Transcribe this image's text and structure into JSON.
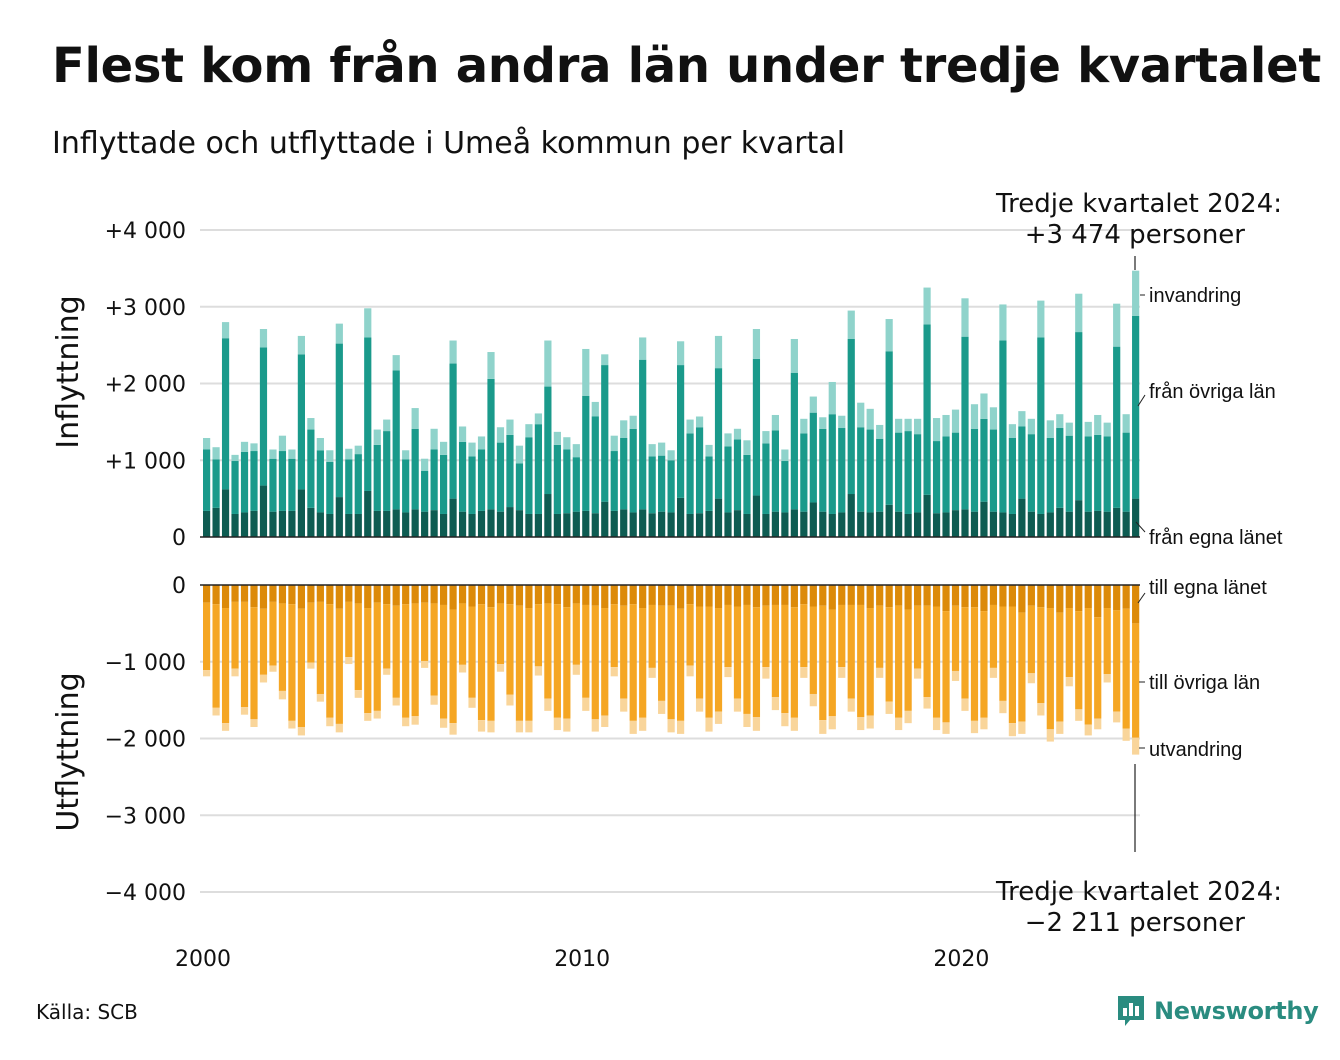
{
  "title": "Flest kom från andra län under tredje kvartalet",
  "subtitle": "Inflyttade och utflyttade i Umeå kommun per kvartal",
  "source": "Källa: SCB",
  "logo_text": "Newsworthy",
  "colors": {
    "in_own": "#0e5c52",
    "in_other": "#1a9a8b",
    "in_immig": "#8fd3cb",
    "out_own": "#dc8a09",
    "out_other": "#f5a623",
    "out_emig": "#f9d59a",
    "grid": "#dddddd",
    "axis": "#222222"
  },
  "annotations": {
    "top_line1": "Tredje kvartalet 2024:",
    "top_line2": "+3 474 personer",
    "bottom_line1": "Tredje kvartalet 2024:",
    "bottom_line2": "−2 211 personer"
  },
  "chart_data": {
    "type": "bar",
    "stacked": true,
    "x_start": "2000 Q1",
    "x_end": "2024 Q3",
    "x_ticks": [
      "2000",
      "2010",
      "2020"
    ],
    "panels": [
      {
        "name": "Inflyttning",
        "ylabel": "Inflyttning",
        "ylim": [
          0,
          4000
        ],
        "y_ticks": [
          "0",
          "+1 000",
          "+2 000",
          "+3 000",
          "+4 000"
        ],
        "series_labels": [
          "från egna länet",
          "från övriga län",
          "invandring"
        ],
        "series": [
          {
            "name": "från egna länet",
            "values": [
              340,
              380,
              620,
              300,
              320,
              340,
              670,
              330,
              340,
              340,
              620,
              380,
              320,
              300,
              520,
              300,
              300,
              600,
              340,
              340,
              360,
              320,
              360,
              330,
              350,
              300,
              500,
              330,
              300,
              340,
              360,
              330,
              390,
              350,
              300,
              300,
              560,
              300,
              310,
              330,
              340,
              310,
              460,
              340,
              360,
              320,
              360,
              310,
              330,
              320,
              510,
              300,
              310,
              340,
              500,
              320,
              350,
              300,
              540,
              300,
              330,
              320,
              360,
              330,
              450,
              330,
              300,
              320,
              560,
              330,
              320,
              330,
              420,
              330,
              300,
              320,
              550,
              310,
              320,
              350,
              360,
              330,
              460,
              330,
              320,
              300,
              500,
              330,
              300,
              320,
              380,
              330,
              480,
              330,
              340,
              330,
              380,
              330,
              500
            ]
          },
          {
            "name": "från övriga län",
            "values": [
              800,
              630,
              1970,
              690,
              790,
              780,
              1800,
              690,
              780,
              680,
              1760,
              1020,
              810,
              680,
              2000,
              710,
              780,
              2000,
              860,
              1040,
              1810,
              690,
              1050,
              530,
              790,
              770,
              1760,
              910,
              750,
              800,
              1700,
              900,
              940,
              610,
              1000,
              1170,
              1400,
              900,
              830,
              710,
              1500,
              1260,
              1780,
              780,
              930,
              1090,
              1950,
              740,
              730,
              680,
              1730,
              1050,
              1120,
              710,
              1700,
              860,
              920,
              770,
              1780,
              920,
              1060,
              670,
              1780,
              1020,
              1170,
              1080,
              1300,
              1100,
              2020,
              1100,
              1080,
              950,
              2000,
              1030,
              1080,
              1020,
              2220,
              940,
              990,
              1010,
              2250,
              1080,
              1080,
              1070,
              2240,
              990,
              940,
              1010,
              2300,
              970,
              1040,
              990,
              2190,
              980,
              990,
              980,
              2100,
              1030,
              2380
            ]
          },
          {
            "name": "invandring",
            "values": [
              150,
              160,
              210,
              80,
              130,
              100,
              240,
              120,
              200,
              120,
              240,
              150,
              160,
              150,
              260,
              140,
              110,
              380,
              200,
              150,
              200,
              120,
              270,
              160,
              270,
              170,
              300,
              200,
              180,
              170,
              350,
              200,
              200,
              230,
              170,
              140,
              600,
              170,
              160,
              170,
              610,
              190,
              140,
              200,
              230,
              170,
              290,
              160,
              170,
              130,
              310,
              180,
              140,
              150,
              420,
              170,
              140,
              190,
              390,
              160,
              200,
              150,
              440,
              190,
              210,
              150,
              420,
              160,
              370,
              320,
              270,
              180,
              420,
              180,
              160,
              200,
              480,
              300,
              280,
              300,
              500,
              320,
              330,
              290,
              470,
              180,
              200,
              200,
              480,
              230,
              180,
              170,
              500,
              190,
              260,
              180,
              560,
              240,
              590
            ]
          }
        ]
      },
      {
        "name": "Utflyttning",
        "ylabel": "Utflyttning",
        "ylim": [
          -4000,
          0
        ],
        "y_ticks": [
          "0",
          "−1 000",
          "−2 000",
          "−3 000",
          "−4 000"
        ],
        "series_labels": [
          "till egna länet",
          "till övriga län",
          "utvandring"
        ],
        "series": [
          {
            "name": "till egna länet",
            "values": [
              -230,
              -250,
              -300,
              -220,
              -220,
              -290,
              -310,
              -220,
              -240,
              -250,
              -310,
              -230,
              -220,
              -250,
              -310,
              -220,
              -240,
              -300,
              -230,
              -250,
              -270,
              -250,
              -240,
              -230,
              -240,
              -260,
              -320,
              -240,
              -280,
              -250,
              -290,
              -240,
              -250,
              -270,
              -300,
              -250,
              -240,
              -250,
              -290,
              -240,
              -260,
              -270,
              -300,
              -250,
              -270,
              -250,
              -300,
              -260,
              -270,
              -270,
              -310,
              -250,
              -280,
              -280,
              -300,
              -260,
              -280,
              -260,
              -290,
              -270,
              -260,
              -260,
              -290,
              -250,
              -280,
              -270,
              -320,
              -260,
              -260,
              -260,
              -300,
              -270,
              -290,
              -270,
              -320,
              -270,
              -270,
              -280,
              -340,
              -270,
              -290,
              -290,
              -340,
              -260,
              -280,
              -280,
              -360,
              -270,
              -290,
              -300,
              -360,
              -300,
              -340,
              -300,
              -420,
              -300,
              -330,
              -310,
              -500
            ]
          },
          {
            "name": "till övriga län",
            "values": [
              -880,
              -1350,
              -1500,
              -870,
              -1370,
              -1460,
              -860,
              -830,
              -1140,
              -1520,
              -1540,
              -780,
              -1200,
              -1480,
              -1500,
              -720,
              -1130,
              -1370,
              -1410,
              -840,
              -1200,
              -1480,
              -1470,
              -760,
              -1200,
              -1480,
              -1480,
              -800,
              -1190,
              -1510,
              -1480,
              -790,
              -1180,
              -1500,
              -1470,
              -810,
              -1240,
              -1480,
              -1450,
              -800,
              -1210,
              -1480,
              -1400,
              -820,
              -1210,
              -1520,
              -1430,
              -820,
              -1240,
              -1480,
              -1460,
              -800,
              -1200,
              -1450,
              -1350,
              -810,
              -1200,
              -1420,
              -1430,
              -800,
              -1200,
              -1410,
              -1440,
              -820,
              -1140,
              -1490,
              -1390,
              -810,
              -1220,
              -1460,
              -1400,
              -810,
              -1230,
              -1460,
              -1320,
              -820,
              -1190,
              -1450,
              -1450,
              -850,
              -1190,
              -1480,
              -1390,
              -820,
              -1230,
              -1520,
              -1420,
              -880,
              -1250,
              -1580,
              -1420,
              -900,
              -1280,
              -1520,
              -1320,
              -860,
              -1320,
              -1560,
              -1490
            ]
          },
          {
            "name": "utvandring",
            "values": [
              -80,
              -100,
              -100,
              -100,
              -100,
              -100,
              -100,
              -80,
              -110,
              -100,
              -110,
              -80,
              -100,
              -110,
              -110,
              -90,
              -100,
              -100,
              -100,
              -80,
              -100,
              -110,
              -110,
              -90,
              -120,
              -120,
              -150,
              -100,
              -130,
              -150,
              -150,
              -100,
              -140,
              -150,
              -150,
              -120,
              -160,
              -160,
              -170,
              -130,
              -170,
              -160,
              -150,
              -120,
              -170,
              -170,
              -170,
              -130,
              -170,
              -170,
              -170,
              -140,
              -170,
              -180,
              -160,
              -130,
              -170,
              -170,
              -180,
              -150,
              -170,
              -170,
              -170,
              -140,
              -160,
              -180,
              -170,
              -140,
              -170,
              -170,
              -170,
              -130,
              -160,
              -160,
              -160,
              -130,
              -150,
              -160,
              -150,
              -130,
              -160,
              -160,
              -150,
              -130,
              -160,
              -170,
              -160,
              -130,
              -160,
              -160,
              -160,
              -120,
              -150,
              -140,
              -140,
              -110,
              -140,
              -160,
              -220
            ]
          }
        ]
      }
    ]
  }
}
